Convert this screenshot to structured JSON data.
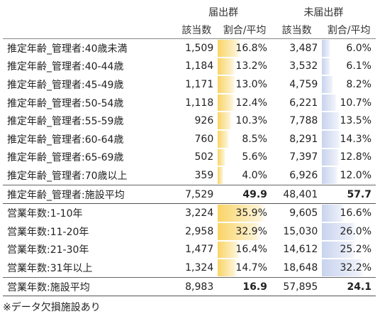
{
  "header": {
    "group1": "届出群",
    "group2": "未届出群",
    "col_count": "該当数",
    "col_rate": "割合/平均"
  },
  "age_rows": [
    {
      "label": "推定年齢_管理者:40歳未満",
      "n1": "1,509",
      "r1": "16.8%",
      "p1": 16.8,
      "n2": "3,487",
      "r2": "6.0%",
      "p2": 6.0
    },
    {
      "label": "推定年齢_管理者:40-44歳",
      "n1": "1,184",
      "r1": "13.2%",
      "p1": 13.2,
      "n2": "3,532",
      "r2": "6.1%",
      "p2": 6.1
    },
    {
      "label": "推定年齢_管理者:45-49歳",
      "n1": "1,171",
      "r1": "13.0%",
      "p1": 13.0,
      "n2": "4,759",
      "r2": "8.2%",
      "p2": 8.2
    },
    {
      "label": "推定年齢_管理者:50-54歳",
      "n1": "1,118",
      "r1": "12.4%",
      "p1": 12.4,
      "n2": "6,221",
      "r2": "10.7%",
      "p2": 10.7
    },
    {
      "label": "推定年齢_管理者:55-59歳",
      "n1": "926",
      "r1": "10.3%",
      "p1": 10.3,
      "n2": "7,788",
      "r2": "13.5%",
      "p2": 13.5
    },
    {
      "label": "推定年齢_管理者:60-64歳",
      "n1": "760",
      "r1": "8.5%",
      "p1": 8.5,
      "n2": "8,291",
      "r2": "14.3%",
      "p2": 14.3
    },
    {
      "label": "推定年齢_管理者:65-69歳",
      "n1": "502",
      "r1": "5.6%",
      "p1": 5.6,
      "n2": "7,397",
      "r2": "12.8%",
      "p2": 12.8
    },
    {
      "label": "推定年齢_管理者:70歳以上",
      "n1": "359",
      "r1": "4.0%",
      "p1": 4.0,
      "n2": "6,926",
      "r2": "12.0%",
      "p2": 12.0
    }
  ],
  "age_avg": {
    "label": "推定年齢_管理者:施設平均",
    "n1": "7,529",
    "r1": "49.9",
    "n2": "48,401",
    "r2": "57.7"
  },
  "years_rows": [
    {
      "label": "営業年数:1-10年",
      "n1": "3,224",
      "r1": "35.9%",
      "p1": 35.9,
      "n2": "9,605",
      "r2": "16.6%",
      "p2": 16.6
    },
    {
      "label": "営業年数:11-20年",
      "n1": "2,958",
      "r1": "32.9%",
      "p1": 32.9,
      "n2": "15,030",
      "r2": "26.0%",
      "p2": 26.0
    },
    {
      "label": "営業年数:21-30年",
      "n1": "1,477",
      "r1": "16.4%",
      "p1": 16.4,
      "n2": "14,612",
      "r2": "25.2%",
      "p2": 25.2
    },
    {
      "label": "営業年数:31年以上",
      "n1": "1,324",
      "r1": "14.7%",
      "p1": 14.7,
      "n2": "18,648",
      "r2": "32.2%",
      "p2": 32.2
    }
  ],
  "years_avg": {
    "label": "営業年数:施設平均",
    "n1": "8,983",
    "r1": "16.9",
    "n2": "57,895",
    "r2": "24.1"
  },
  "note": "※データ欠損施設あり",
  "colors": {
    "bar_yellow": "#f9d466",
    "bar_blue": "#c8d3ee"
  }
}
